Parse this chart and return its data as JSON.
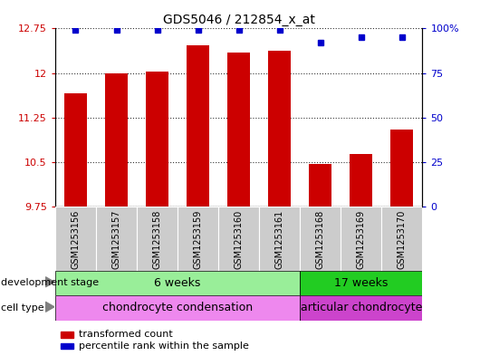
{
  "title": "GDS5046 / 212854_x_at",
  "samples": [
    "GSM1253156",
    "GSM1253157",
    "GSM1253158",
    "GSM1253159",
    "GSM1253160",
    "GSM1253161",
    "GSM1253168",
    "GSM1253169",
    "GSM1253170"
  ],
  "transformed_counts": [
    11.65,
    12.0,
    12.02,
    12.47,
    12.35,
    12.37,
    10.46,
    10.63,
    11.05
  ],
  "percentile_ranks": [
    99,
    99,
    99,
    99,
    99,
    99,
    92,
    95,
    95
  ],
  "ylim_left": [
    9.75,
    12.75
  ],
  "ylim_right": [
    0,
    100
  ],
  "yticks_left": [
    9.75,
    10.5,
    11.25,
    12.0,
    12.75
  ],
  "yticks_right": [
    0,
    25,
    50,
    75,
    100
  ],
  "ytick_labels_left": [
    "9.75",
    "10.5",
    "11.25",
    "12",
    "12.75"
  ],
  "ytick_labels_right": [
    "0",
    "25",
    "50",
    "75",
    "100%"
  ],
  "bar_color": "#cc0000",
  "dot_color": "#0000cc",
  "development_stage_groups": [
    {
      "label": "6 weeks",
      "start": 0,
      "end": 6,
      "color": "#99ee99"
    },
    {
      "label": "17 weeks",
      "start": 6,
      "end": 9,
      "color": "#22cc22"
    }
  ],
  "cell_type_groups": [
    {
      "label": "chondrocyte condensation",
      "start": 0,
      "end": 6,
      "color": "#ee88ee"
    },
    {
      "label": "articular chondrocyte",
      "start": 6,
      "end": 9,
      "color": "#cc44cc"
    }
  ],
  "row_labels": [
    "development stage",
    "cell type"
  ],
  "legend_items": [
    {
      "color": "#cc0000",
      "label": "transformed count"
    },
    {
      "color": "#0000cc",
      "label": "percentile rank within the sample"
    }
  ],
  "title_fontsize": 10,
  "tick_fontsize": 8,
  "label_fontsize": 8,
  "sample_fontsize": 7,
  "annotation_fontsize": 9
}
